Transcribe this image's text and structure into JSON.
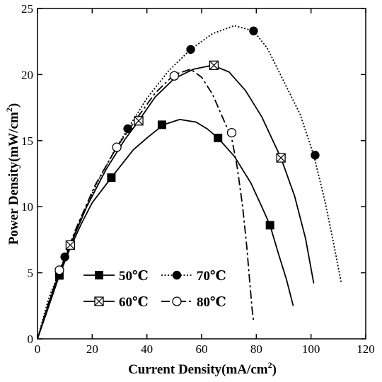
{
  "chart_data": {
    "type": "line",
    "title": "",
    "xlabel": "Current Density(mA/cm",
    "xlabel_sup": "2",
    "xlabel_end": ")",
    "ylabel": "Power Density(mW/cm",
    "ylabel_sup": "2",
    "ylabel_end": ")",
    "xlim": [
      0,
      120
    ],
    "ylim": [
      0,
      25
    ],
    "xticks": [
      "0",
      "20",
      "40",
      "60",
      "80",
      "100",
      "120"
    ],
    "yticks": [
      "0",
      "5",
      "10",
      "15",
      "20",
      "25"
    ],
    "grid": false,
    "legend_position": "bottom-left",
    "series": [
      {
        "name": "50℃",
        "color": "#000000",
        "dash": "solid",
        "marker": "filled-square",
        "curve": [
          [
            0,
            0
          ],
          [
            4,
            2.4
          ],
          [
            8,
            4.8
          ],
          [
            12,
            6.9
          ],
          [
            16,
            8.7
          ],
          [
            20,
            10.3
          ],
          [
            27,
            12.2
          ],
          [
            35,
            14.3
          ],
          [
            40,
            15.2
          ],
          [
            46,
            16.2
          ],
          [
            52,
            16.6
          ],
          [
            58,
            16.4
          ],
          [
            62,
            15.9
          ],
          [
            66,
            15.2
          ],
          [
            72,
            13.8
          ],
          [
            78,
            11.8
          ],
          [
            82,
            10.0
          ],
          [
            85,
            8.6
          ],
          [
            88,
            6.5
          ],
          [
            91,
            4.5
          ],
          [
            93.5,
            2.5
          ]
        ],
        "markers": [
          [
            8,
            4.8
          ],
          [
            27,
            12.2
          ],
          [
            45.5,
            16.2
          ],
          [
            66,
            15.2
          ],
          [
            85,
            8.6
          ]
        ]
      },
      {
        "name": "60℃",
        "color": "#000000",
        "dash": "solid",
        "marker": "crossed-square",
        "curve": [
          [
            0,
            0
          ],
          [
            4,
            2.6
          ],
          [
            8,
            5.0
          ],
          [
            12,
            7.1
          ],
          [
            18,
            10.0
          ],
          [
            25,
            12.8
          ],
          [
            32,
            15.1
          ],
          [
            37,
            16.5
          ],
          [
            43,
            18.3
          ],
          [
            50,
            19.7
          ],
          [
            57,
            20.4
          ],
          [
            64,
            20.7
          ],
          [
            70,
            20.2
          ],
          [
            76,
            18.8
          ],
          [
            82,
            16.8
          ],
          [
            89,
            13.7
          ],
          [
            94,
            10.8
          ],
          [
            98,
            7.6
          ],
          [
            101,
            4.2
          ]
        ],
        "markers": [
          [
            12,
            7.1
          ],
          [
            37,
            16.5
          ],
          [
            64.5,
            20.7
          ],
          [
            89,
            13.7
          ]
        ]
      },
      {
        "name": "70℃",
        "color": "#000000",
        "dash": "dotted",
        "marker": "filled-circle",
        "curve": [
          [
            0,
            0
          ],
          [
            4,
            3.0
          ],
          [
            10,
            6.2
          ],
          [
            16,
            9.2
          ],
          [
            22,
            11.9
          ],
          [
            28,
            14.2
          ],
          [
            33,
            15.9
          ],
          [
            40,
            18.2
          ],
          [
            48,
            20.3
          ],
          [
            56,
            21.9
          ],
          [
            64,
            23.1
          ],
          [
            72,
            23.7
          ],
          [
            79,
            23.3
          ],
          [
            84,
            22.0
          ],
          [
            90,
            19.5
          ],
          [
            96,
            17.0
          ],
          [
            101,
            13.9
          ],
          [
            105,
            10.5
          ],
          [
            108,
            7.5
          ],
          [
            111,
            4.3
          ]
        ],
        "markers": [
          [
            10,
            6.2
          ],
          [
            33,
            15.9
          ],
          [
            56,
            21.9
          ],
          [
            79,
            23.3
          ],
          [
            101.5,
            13.9
          ]
        ]
      },
      {
        "name": "80℃",
        "color": "#000000",
        "dash": "dash-dot",
        "marker": "open-circle",
        "curve": [
          [
            0,
            0
          ],
          [
            4,
            2.7
          ],
          [
            8,
            5.1
          ],
          [
            14,
            8.3
          ],
          [
            21,
            11.6
          ],
          [
            29,
            14.5
          ],
          [
            36,
            16.6
          ],
          [
            43,
            18.6
          ],
          [
            50,
            20.0
          ],
          [
            56,
            20.4
          ],
          [
            60,
            19.8
          ],
          [
            64,
            18.5
          ],
          [
            68,
            16.6
          ],
          [
            71,
            15.2
          ],
          [
            73,
            13.0
          ],
          [
            75,
            10.0
          ],
          [
            76.5,
            7.0
          ],
          [
            77.5,
            4.5
          ],
          [
            78.5,
            2.2
          ],
          [
            79,
            1.3
          ]
        ],
        "markers": [
          [
            8,
            5.2
          ],
          [
            29,
            14.5
          ],
          [
            50,
            19.9
          ],
          [
            71,
            15.6
          ]
        ]
      }
    ]
  }
}
